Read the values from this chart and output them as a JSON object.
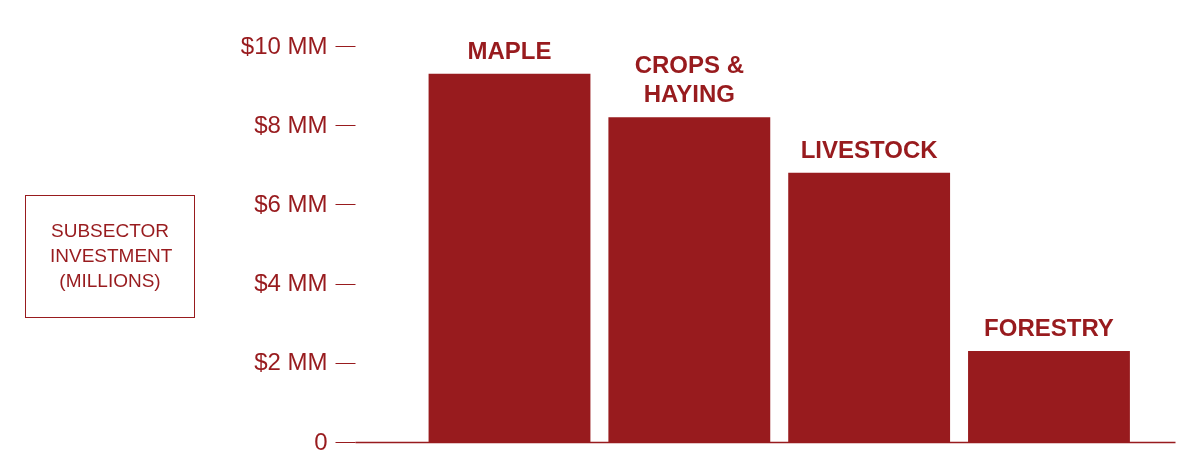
{
  "chart_data": {
    "type": "bar",
    "ylabel": "SUBSECTOR INVESTMENT (MILLIONS)",
    "categories": [
      "MAPLE",
      "CROPS & HAYING",
      "LIVESTOCK",
      "FORESTRY"
    ],
    "values": [
      9.3,
      8.2,
      6.8,
      2.3
    ],
    "color": "#981b1e",
    "ylim": [
      0,
      10
    ],
    "yticks": [
      0,
      {
        "value": 2,
        "label": "$2 MM"
      },
      {
        "value": 4,
        "label": "$4 MM"
      },
      {
        "value": 6,
        "label": "$6 MM"
      },
      {
        "value": 8,
        "label": "$8 MM"
      },
      {
        "value": 10,
        "label": "$10 MM"
      }
    ],
    "grid": false
  }
}
